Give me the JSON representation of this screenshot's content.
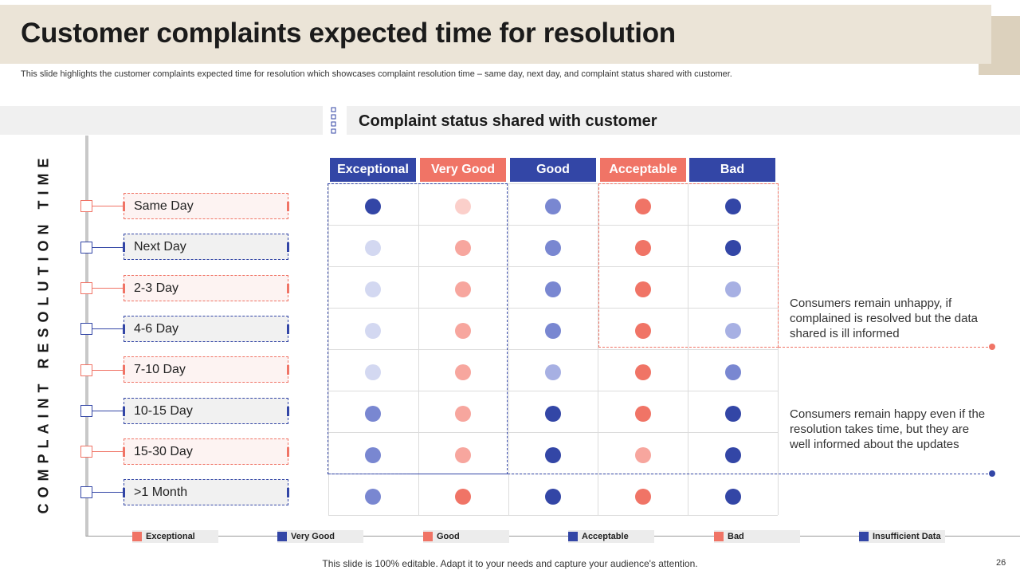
{
  "header": {
    "title": "Customer complaints expected time for resolution",
    "subtitle": "This slide highlights the customer complaints expected time for resolution which showcases complaint resolution time – same day, next day, and complaint status shared with customer."
  },
  "section": {
    "heading": "Complaint status shared with customer"
  },
  "vertical_label": "COMPLAINT RESOLUTION TIME",
  "rows": [
    {
      "label": "Same Day",
      "style": "red"
    },
    {
      "label": "Next Day",
      "style": "blue"
    },
    {
      "label": "2-3 Day",
      "style": "red"
    },
    {
      "label": "4-6 Day",
      "style": "blue"
    },
    {
      "label": "7-10 Day",
      "style": "red"
    },
    {
      "label": "10-15 Day",
      "style": "blue"
    },
    {
      "label": "15-30 Day",
      "style": "red"
    },
    {
      "label": ">1 Month",
      "style": "blue"
    }
  ],
  "columns": [
    {
      "label": "Exceptional",
      "color": "#3346a6"
    },
    {
      "label": "Very Good",
      "color": "#f07466"
    },
    {
      "label": "Good",
      "color": "#3346a6"
    },
    {
      "label": "Acceptable",
      "color": "#f07466"
    },
    {
      "label": "Bad",
      "color": "#3346a6"
    }
  ],
  "status_colors": {
    "exceptional": "#3346a6",
    "very_good": "#f07466",
    "good": "#f7a69e",
    "acceptable": "#7987d1",
    "bad": "#fbcfca",
    "insufficient": "#d3d8f1",
    "mid_blue": "#a7b0e3"
  },
  "matrix": [
    [
      "exceptional",
      "bad",
      "acceptable",
      "very_good",
      "exceptional"
    ],
    [
      "insufficient",
      "good",
      "acceptable",
      "very_good",
      "exceptional"
    ],
    [
      "insufficient",
      "good",
      "acceptable",
      "very_good",
      "mid_blue"
    ],
    [
      "insufficient",
      "good",
      "acceptable",
      "very_good",
      "mid_blue"
    ],
    [
      "insufficient",
      "good",
      "mid_blue",
      "very_good",
      "acceptable"
    ],
    [
      "acceptable",
      "good",
      "exceptional",
      "very_good",
      "exceptional"
    ],
    [
      "acceptable",
      "good",
      "exceptional",
      "good",
      "exceptional"
    ],
    [
      "acceptable",
      "very_good",
      "exceptional",
      "very_good",
      "exceptional"
    ]
  ],
  "notes": [
    {
      "text": "Consumers remain unhappy,  if complained is resolved but the data shared is ill informed"
    },
    {
      "text": "Consumers remain happy even if the resolution takes time, but they are well informed about the updates"
    }
  ],
  "legend": [
    {
      "label": "Exceptional",
      "color": "#f07466"
    },
    {
      "label": "Very Good",
      "color": "#3346a6"
    },
    {
      "label": "Good",
      "color": "#f07466"
    },
    {
      "label": "Acceptable",
      "color": "#3346a6"
    },
    {
      "label": "Bad",
      "color": "#f07466"
    },
    {
      "label": "Insufficient Data",
      "color": "#3346a6"
    }
  ],
  "footer": {
    "text": "This slide is 100% editable. Adapt it to your needs and capture your audience's attention.",
    "page": "26"
  }
}
